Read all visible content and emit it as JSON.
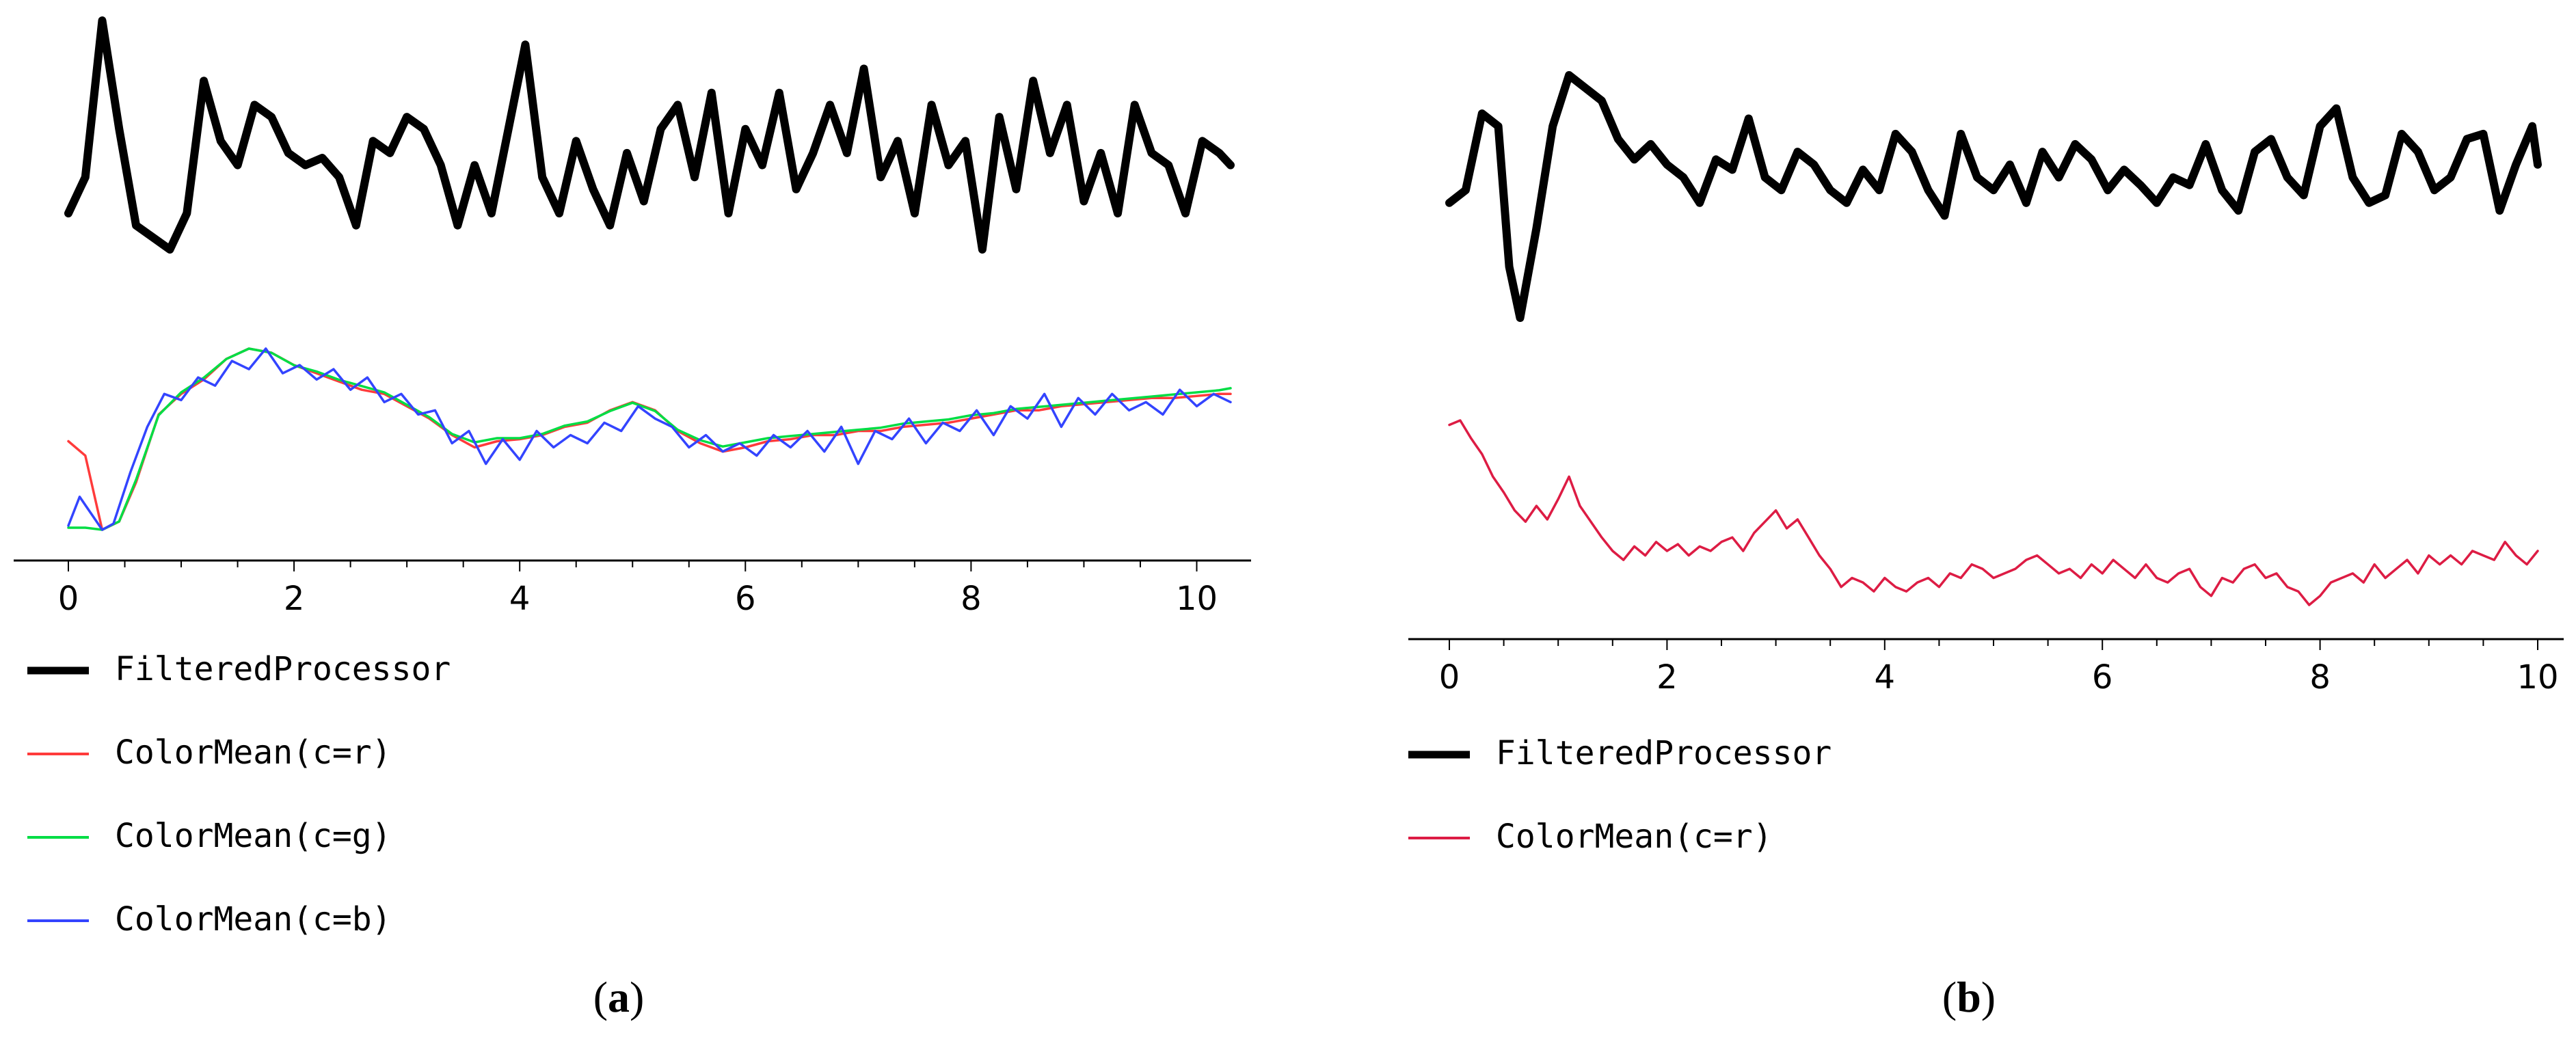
{
  "chart_data": [
    {
      "panel": "a",
      "type": "line",
      "caption_open": "(",
      "caption_letter": "a",
      "caption_close": ")",
      "xlim": [
        0,
        10.3
      ],
      "xticks": [
        0,
        2,
        4,
        6,
        8,
        10
      ],
      "xtick_labels": [
        "0",
        "2",
        "4",
        "6",
        "8",
        "10"
      ],
      "legend_position": "below-left",
      "series": [
        {
          "name": "FilteredProcessor",
          "color": "#000000",
          "x": [
            0,
            0.15,
            0.3,
            0.45,
            0.6,
            0.75,
            0.9,
            1.05,
            1.2,
            1.35,
            1.5,
            1.65,
            1.8,
            1.95,
            2.1,
            2.25,
            2.4,
            2.55,
            2.7,
            2.85,
            3.0,
            3.15,
            3.3,
            3.45,
            3.6,
            3.75,
            3.9,
            4.05,
            4.2,
            4.35,
            4.5,
            4.65,
            4.8,
            4.95,
            5.1,
            5.25,
            5.4,
            5.55,
            5.7,
            5.85,
            6.0,
            6.15,
            6.3,
            6.45,
            6.6,
            6.75,
            6.9,
            7.05,
            7.2,
            7.35,
            7.5,
            7.65,
            7.8,
            7.95,
            8.1,
            8.25,
            8.4,
            8.55,
            8.7,
            8.85,
            9.0,
            9.15,
            9.3,
            9.45,
            9.6,
            9.75,
            9.9,
            10.05,
            10.2,
            10.3
          ],
          "values": [
            0.15,
            0.3,
            0.95,
            0.5,
            0.1,
            0.05,
            0.0,
            0.15,
            0.7,
            0.45,
            0.35,
            0.6,
            0.55,
            0.4,
            0.35,
            0.38,
            0.3,
            0.1,
            0.45,
            0.4,
            0.55,
            0.5,
            0.35,
            0.1,
            0.35,
            0.15,
            0.5,
            0.85,
            0.3,
            0.15,
            0.45,
            0.25,
            0.1,
            0.4,
            0.2,
            0.5,
            0.6,
            0.3,
            0.65,
            0.15,
            0.5,
            0.35,
            0.65,
            0.25,
            0.4,
            0.6,
            0.4,
            0.75,
            0.3,
            0.45,
            0.15,
            0.6,
            0.35,
            0.45,
            0.0,
            0.55,
            0.25,
            0.7,
            0.4,
            0.6,
            0.2,
            0.4,
            0.15,
            0.6,
            0.4,
            0.35,
            0.15,
            0.45,
            0.4,
            0.35
          ]
        },
        {
          "name": "ColorMean(c=r)",
          "color": "#ff3b3b",
          "x": [
            0,
            0.15,
            0.3,
            0.45,
            0.6,
            0.8,
            1.0,
            1.2,
            1.4,
            1.6,
            1.8,
            2.0,
            2.2,
            2.4,
            2.6,
            2.8,
            3.0,
            3.2,
            3.4,
            3.6,
            3.8,
            4.0,
            4.2,
            4.4,
            4.6,
            4.8,
            5.0,
            5.2,
            5.4,
            5.6,
            5.8,
            6.0,
            6.2,
            6.4,
            6.6,
            6.8,
            7.0,
            7.2,
            7.4,
            7.6,
            7.8,
            8.0,
            8.2,
            8.4,
            8.6,
            8.8,
            9.0,
            9.2,
            9.4,
            9.6,
            9.8,
            10.0,
            10.2,
            10.3
          ],
          "values": [
            0.55,
            0.48,
            0.12,
            0.16,
            0.35,
            0.68,
            0.78,
            0.85,
            0.95,
            1.0,
            0.98,
            0.92,
            0.88,
            0.84,
            0.8,
            0.78,
            0.72,
            0.66,
            0.58,
            0.52,
            0.55,
            0.56,
            0.58,
            0.62,
            0.64,
            0.7,
            0.74,
            0.7,
            0.6,
            0.54,
            0.5,
            0.52,
            0.55,
            0.56,
            0.58,
            0.58,
            0.6,
            0.6,
            0.62,
            0.63,
            0.64,
            0.66,
            0.68,
            0.7,
            0.7,
            0.72,
            0.73,
            0.74,
            0.75,
            0.76,
            0.76,
            0.77,
            0.78,
            0.78
          ]
        },
        {
          "name": "ColorMean(c=g)",
          "color": "#00dd44",
          "x": [
            0,
            0.15,
            0.3,
            0.45,
            0.6,
            0.8,
            1.0,
            1.2,
            1.4,
            1.6,
            1.8,
            2.0,
            2.2,
            2.4,
            2.6,
            2.8,
            3.0,
            3.2,
            3.4,
            3.6,
            3.8,
            4.0,
            4.2,
            4.4,
            4.6,
            4.8,
            5.0,
            5.2,
            5.4,
            5.6,
            5.8,
            6.0,
            6.2,
            6.4,
            6.6,
            6.8,
            7.0,
            7.2,
            7.4,
            7.6,
            7.8,
            8.0,
            8.2,
            8.4,
            8.6,
            8.8,
            9.0,
            9.2,
            9.4,
            9.6,
            9.8,
            10.0,
            10.2,
            10.3
          ],
          "values": [
            0.12,
            0.12,
            0.11,
            0.15,
            0.35,
            0.66,
            0.77,
            0.84,
            0.93,
            0.98,
            0.96,
            0.9,
            0.87,
            0.83,
            0.8,
            0.77,
            0.71,
            0.65,
            0.57,
            0.53,
            0.55,
            0.55,
            0.57,
            0.61,
            0.63,
            0.68,
            0.72,
            0.68,
            0.59,
            0.54,
            0.51,
            0.53,
            0.55,
            0.56,
            0.57,
            0.58,
            0.59,
            0.6,
            0.62,
            0.63,
            0.64,
            0.66,
            0.67,
            0.69,
            0.7,
            0.71,
            0.72,
            0.73,
            0.74,
            0.75,
            0.76,
            0.77,
            0.78,
            0.79
          ]
        },
        {
          "name": "ColorMean(c=b)",
          "color": "#3344ff",
          "x": [
            0,
            0.1,
            0.2,
            0.3,
            0.4,
            0.55,
            0.7,
            0.85,
            1.0,
            1.15,
            1.3,
            1.45,
            1.6,
            1.75,
            1.9,
            2.05,
            2.2,
            2.35,
            2.5,
            2.65,
            2.8,
            2.95,
            3.1,
            3.25,
            3.4,
            3.55,
            3.7,
            3.85,
            4.0,
            4.15,
            4.3,
            4.45,
            4.6,
            4.75,
            4.9,
            5.05,
            5.2,
            5.35,
            5.5,
            5.65,
            5.8,
            5.95,
            6.1,
            6.25,
            6.4,
            6.55,
            6.7,
            6.85,
            7.0,
            7.15,
            7.3,
            7.45,
            7.6,
            7.75,
            7.9,
            8.05,
            8.2,
            8.35,
            8.5,
            8.65,
            8.8,
            8.95,
            9.1,
            9.25,
            9.4,
            9.55,
            9.7,
            9.85,
            10.0,
            10.15,
            10.3
          ],
          "values": [
            0.14,
            0.28,
            0.2,
            0.12,
            0.15,
            0.4,
            0.62,
            0.78,
            0.75,
            0.86,
            0.82,
            0.94,
            0.9,
            1.0,
            0.88,
            0.92,
            0.85,
            0.9,
            0.8,
            0.86,
            0.74,
            0.78,
            0.68,
            0.7,
            0.54,
            0.6,
            0.44,
            0.56,
            0.46,
            0.6,
            0.52,
            0.58,
            0.54,
            0.64,
            0.6,
            0.72,
            0.66,
            0.62,
            0.52,
            0.58,
            0.5,
            0.54,
            0.48,
            0.58,
            0.52,
            0.6,
            0.5,
            0.62,
            0.44,
            0.6,
            0.56,
            0.66,
            0.54,
            0.64,
            0.6,
            0.7,
            0.58,
            0.72,
            0.66,
            0.78,
            0.62,
            0.76,
            0.68,
            0.78,
            0.7,
            0.74,
            0.68,
            0.8,
            0.72,
            0.78,
            0.74
          ]
        }
      ]
    },
    {
      "panel": "b",
      "type": "line",
      "caption_open": "(",
      "caption_letter": "b",
      "caption_close": ")",
      "xlim": [
        0,
        10
      ],
      "xticks": [
        0,
        2,
        4,
        6,
        8,
        10
      ],
      "xtick_labels": [
        "0",
        "2",
        "4",
        "6",
        "8",
        "10"
      ],
      "legend_position": "below-left",
      "series": [
        {
          "name": "FilteredProcessor",
          "color": "#000000",
          "x": [
            0,
            0.15,
            0.3,
            0.45,
            0.55,
            0.65,
            0.8,
            0.95,
            1.1,
            1.25,
            1.4,
            1.55,
            1.7,
            1.85,
            2.0,
            2.15,
            2.3,
            2.45,
            2.6,
            2.75,
            2.9,
            3.05,
            3.2,
            3.35,
            3.5,
            3.65,
            3.8,
            3.95,
            4.1,
            4.25,
            4.4,
            4.55,
            4.7,
            4.85,
            5.0,
            5.15,
            5.3,
            5.45,
            5.6,
            5.75,
            5.9,
            6.05,
            6.2,
            6.35,
            6.5,
            6.65,
            6.8,
            6.95,
            7.1,
            7.25,
            7.4,
            7.55,
            7.7,
            7.85,
            8.0,
            8.15,
            8.3,
            8.45,
            8.6,
            8.75,
            8.9,
            9.05,
            9.2,
            9.35,
            9.5,
            9.65,
            9.8,
            9.95,
            10.0
          ],
          "values": [
            0.45,
            0.5,
            0.8,
            0.75,
            0.2,
            0.0,
            0.35,
            0.75,
            0.95,
            0.9,
            0.85,
            0.7,
            0.62,
            0.68,
            0.6,
            0.55,
            0.45,
            0.62,
            0.58,
            0.78,
            0.55,
            0.5,
            0.65,
            0.6,
            0.5,
            0.45,
            0.58,
            0.5,
            0.72,
            0.65,
            0.5,
            0.4,
            0.72,
            0.55,
            0.5,
            0.6,
            0.45,
            0.65,
            0.55,
            0.68,
            0.62,
            0.5,
            0.58,
            0.52,
            0.45,
            0.55,
            0.52,
            0.68,
            0.5,
            0.42,
            0.65,
            0.7,
            0.55,
            0.48,
            0.75,
            0.82,
            0.55,
            0.45,
            0.48,
            0.72,
            0.65,
            0.5,
            0.55,
            0.7,
            0.72,
            0.42,
            0.6,
            0.75,
            0.6
          ]
        },
        {
          "name": "ColorMean(c=r)",
          "color": "#dd1c44",
          "x": [
            0,
            0.1,
            0.2,
            0.3,
            0.4,
            0.5,
            0.6,
            0.7,
            0.8,
            0.9,
            1.0,
            1.1,
            1.2,
            1.3,
            1.4,
            1.5,
            1.6,
            1.7,
            1.8,
            1.9,
            2.0,
            2.1,
            2.2,
            2.3,
            2.4,
            2.5,
            2.6,
            2.7,
            2.8,
            2.9,
            3.0,
            3.1,
            3.2,
            3.3,
            3.4,
            3.5,
            3.6,
            3.7,
            3.8,
            3.9,
            4.0,
            4.1,
            4.2,
            4.3,
            4.4,
            4.5,
            4.6,
            4.7,
            4.8,
            4.9,
            5.0,
            5.1,
            5.2,
            5.3,
            5.4,
            5.5,
            5.6,
            5.7,
            5.8,
            5.9,
            6.0,
            6.1,
            6.2,
            6.3,
            6.4,
            6.5,
            6.6,
            6.7,
            6.8,
            6.9,
            7.0,
            7.1,
            7.2,
            7.3,
            7.4,
            7.5,
            7.6,
            7.7,
            7.8,
            7.9,
            8.0,
            8.1,
            8.2,
            8.3,
            8.4,
            8.5,
            8.6,
            8.7,
            8.8,
            8.9,
            9.0,
            9.1,
            9.2,
            9.3,
            9.4,
            9.5,
            9.6,
            9.7,
            9.8,
            9.9,
            10.0
          ],
          "values": [
            0.98,
            1.0,
            0.92,
            0.85,
            0.75,
            0.68,
            0.6,
            0.55,
            0.62,
            0.56,
            0.65,
            0.75,
            0.62,
            0.55,
            0.48,
            0.42,
            0.38,
            0.44,
            0.4,
            0.46,
            0.42,
            0.45,
            0.4,
            0.44,
            0.42,
            0.46,
            0.48,
            0.42,
            0.5,
            0.55,
            0.6,
            0.52,
            0.56,
            0.48,
            0.4,
            0.34,
            0.26,
            0.3,
            0.28,
            0.24,
            0.3,
            0.26,
            0.24,
            0.28,
            0.3,
            0.26,
            0.32,
            0.3,
            0.36,
            0.34,
            0.3,
            0.32,
            0.34,
            0.38,
            0.4,
            0.36,
            0.32,
            0.34,
            0.3,
            0.36,
            0.32,
            0.38,
            0.34,
            0.3,
            0.36,
            0.3,
            0.28,
            0.32,
            0.34,
            0.26,
            0.22,
            0.3,
            0.28,
            0.34,
            0.36,
            0.3,
            0.32,
            0.26,
            0.24,
            0.18,
            0.22,
            0.28,
            0.3,
            0.32,
            0.28,
            0.36,
            0.3,
            0.34,
            0.38,
            0.32,
            0.4,
            0.36,
            0.4,
            0.36,
            0.42,
            0.4,
            0.38,
            0.46,
            0.4,
            0.36,
            0.42
          ]
        }
      ]
    }
  ]
}
